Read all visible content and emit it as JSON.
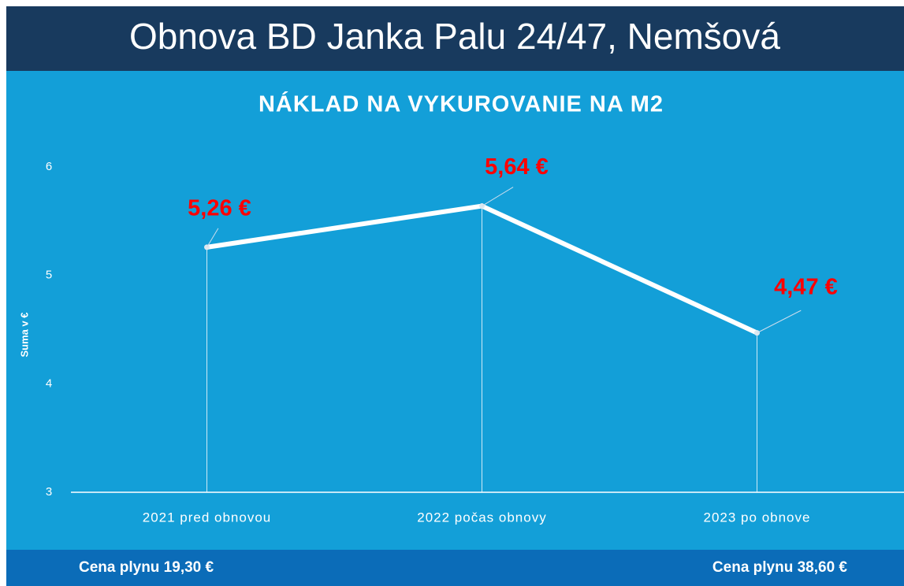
{
  "header": {
    "title": "Obnova BD Janka Palu 24/47, Nemšová"
  },
  "chart_data": {
    "type": "line",
    "title": "NÁKLAD NA VYKUROVANIE NA M2",
    "y_label": "Suma v €",
    "categories": [
      "2021 pred obnovou",
      "2022 počas obnovy",
      "2023 po obnove"
    ],
    "series": [
      {
        "name": "Náklad",
        "color": "#ffffff",
        "values": [
          5.26,
          5.64,
          4.47
        ],
        "value_labels": [
          "5,26 €",
          "5,64 €",
          "4,47 €"
        ]
      }
    ],
    "ylim": [
      3,
      6
    ],
    "yticks": [
      3,
      4,
      5,
      6
    ],
    "label_color": "#ff0000"
  },
  "footer": {
    "left": "Cena plynu 19,30 €",
    "right": "Cena plynu 38,60 €"
  }
}
